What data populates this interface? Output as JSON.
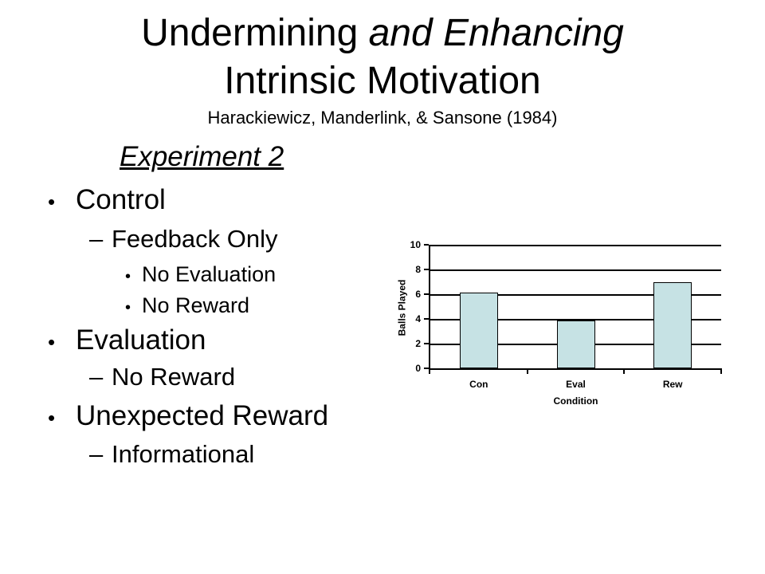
{
  "slide": {
    "title_line1_regular": "Undermining ",
    "title_line1_italic": "and Enhancing",
    "title_line2": "Intrinsic Motivation",
    "citation": "Harackiewicz, Manderlink, & Sansone (1984)",
    "heading": "Experiment 2"
  },
  "outline": {
    "items": [
      {
        "level": 1,
        "bullet": "•",
        "text": "Control"
      },
      {
        "level": 2,
        "bullet": "–",
        "text": "Feedback Only"
      },
      {
        "level": 3,
        "bullet": "•",
        "text": "No Evaluation"
      },
      {
        "level": 3,
        "bullet": "•",
        "text": "No Reward"
      },
      {
        "level": 1,
        "bullet": "•",
        "text": "Evaluation"
      },
      {
        "level": 2,
        "bullet": "–",
        "text": "No Reward"
      },
      {
        "level": 1,
        "bullet": "•",
        "text": "Unexpected Reward"
      },
      {
        "level": 2,
        "bullet": "–",
        "text": "Informational"
      }
    ]
  },
  "chart_data": {
    "type": "bar",
    "categories": [
      "Con",
      "Eval",
      "Rew"
    ],
    "values": [
      6.1,
      3.9,
      7
    ],
    "title": "",
    "xlabel": "Condition",
    "ylabel": "Balls Played",
    "ylim": [
      0,
      10
    ],
    "yticks": [
      0,
      2,
      4,
      6,
      8,
      10
    ],
    "grid": true,
    "legend_position": "none",
    "bar_fill": "#C6E2E4",
    "bar_border": "#000000",
    "axis_color": "#000000"
  },
  "colors": {
    "background": "#FFFFFF",
    "text": "#000000"
  }
}
